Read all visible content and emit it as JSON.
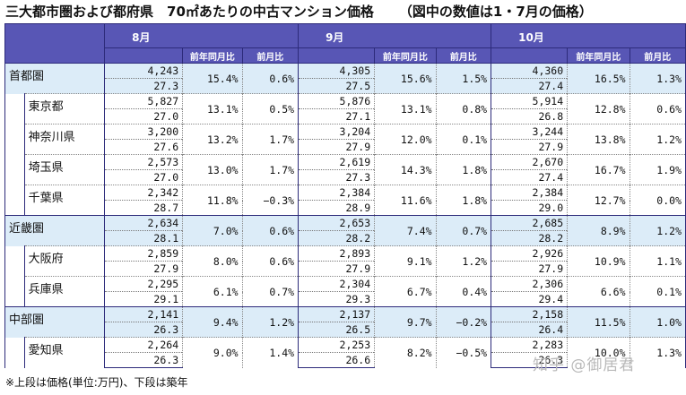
{
  "title": {
    "main": "三大都市圏および都府県　70㎡あたりの中古マンション価格",
    "note": "（図中の数値は1・7月の価格）"
  },
  "columns": {
    "months": [
      "8月",
      "9月",
      "10月"
    ],
    "yoy_label": "前年同月比",
    "mom_label": "前月比"
  },
  "rows": [
    {
      "name": "首都圏",
      "level": 0,
      "values": [
        {
          "price": "4,243",
          "age": "27.3",
          "yoy": "15.4%",
          "mom": "0.6%"
        },
        {
          "price": "4,305",
          "age": "27.5",
          "yoy": "15.6%",
          "mom": "1.5%"
        },
        {
          "price": "4,360",
          "age": "27.4",
          "yoy": "16.5%",
          "mom": "1.3%"
        }
      ]
    },
    {
      "name": "東京都",
      "level": 1,
      "values": [
        {
          "price": "5,827",
          "age": "27.0",
          "yoy": "13.1%",
          "mom": "0.5%"
        },
        {
          "price": "5,876",
          "age": "27.1",
          "yoy": "13.1%",
          "mom": "0.8%"
        },
        {
          "price": "5,914",
          "age": "26.8",
          "yoy": "12.8%",
          "mom": "0.6%"
        }
      ]
    },
    {
      "name": "神奈川県",
      "level": 1,
      "values": [
        {
          "price": "3,200",
          "age": "27.6",
          "yoy": "13.2%",
          "mom": "1.7%"
        },
        {
          "price": "3,204",
          "age": "27.9",
          "yoy": "12.0%",
          "mom": "0.1%"
        },
        {
          "price": "3,244",
          "age": "27.9",
          "yoy": "13.8%",
          "mom": "1.2%"
        }
      ]
    },
    {
      "name": "埼玉県",
      "level": 1,
      "values": [
        {
          "price": "2,573",
          "age": "27.0",
          "yoy": "13.0%",
          "mom": "1.7%"
        },
        {
          "price": "2,619",
          "age": "27.3",
          "yoy": "14.3%",
          "mom": "1.8%"
        },
        {
          "price": "2,670",
          "age": "27.4",
          "yoy": "16.7%",
          "mom": "1.9%"
        }
      ]
    },
    {
      "name": "千葉県",
      "level": 1,
      "values": [
        {
          "price": "2,342",
          "age": "28.7",
          "yoy": "11.8%",
          "mom": "−0.3%"
        },
        {
          "price": "2,384",
          "age": "28.9",
          "yoy": "11.6%",
          "mom": "1.8%"
        },
        {
          "price": "2,384",
          "age": "29.0",
          "yoy": "12.7%",
          "mom": "0.0%"
        }
      ]
    },
    {
      "name": "近畿圏",
      "level": 0,
      "values": [
        {
          "price": "2,634",
          "age": "28.1",
          "yoy": "7.0%",
          "mom": "0.6%"
        },
        {
          "price": "2,653",
          "age": "28.2",
          "yoy": "7.4%",
          "mom": "0.7%"
        },
        {
          "price": "2,685",
          "age": "28.2",
          "yoy": "8.9%",
          "mom": "1.2%"
        }
      ]
    },
    {
      "name": "大阪府",
      "level": 1,
      "values": [
        {
          "price": "2,859",
          "age": "27.9",
          "yoy": "8.0%",
          "mom": "0.6%"
        },
        {
          "price": "2,893",
          "age": "27.9",
          "yoy": "9.1%",
          "mom": "1.2%"
        },
        {
          "price": "2,926",
          "age": "27.9",
          "yoy": "10.9%",
          "mom": "1.1%"
        }
      ]
    },
    {
      "name": "兵庫県",
      "level": 1,
      "values": [
        {
          "price": "2,295",
          "age": "29.1",
          "yoy": "6.1%",
          "mom": "0.7%"
        },
        {
          "price": "2,304",
          "age": "29.3",
          "yoy": "6.7%",
          "mom": "0.4%"
        },
        {
          "price": "2,306",
          "age": "29.4",
          "yoy": "6.6%",
          "mom": "0.1%"
        }
      ]
    },
    {
      "name": "中部圏",
      "level": 0,
      "values": [
        {
          "price": "2,141",
          "age": "26.3",
          "yoy": "9.4%",
          "mom": "1.2%"
        },
        {
          "price": "2,137",
          "age": "26.5",
          "yoy": "9.7%",
          "mom": "−0.2%"
        },
        {
          "price": "2,158",
          "age": "26.4",
          "yoy": "11.5%",
          "mom": "1.0%"
        }
      ]
    },
    {
      "name": "愛知県",
      "level": 1,
      "values": [
        {
          "price": "2,264",
          "age": "26.3",
          "yoy": "9.0%",
          "mom": "1.4%"
        },
        {
          "price": "2,253",
          "age": "26.6",
          "yoy": "8.2%",
          "mom": "−0.5%"
        },
        {
          "price": "2,283",
          "age": "26.3",
          "yoy": "10.0%",
          "mom": "1.3%"
        }
      ]
    }
  ],
  "footnote": "※上段は価格(単位:万円)、下段は築年",
  "watermark": "知乎 @御居君"
}
